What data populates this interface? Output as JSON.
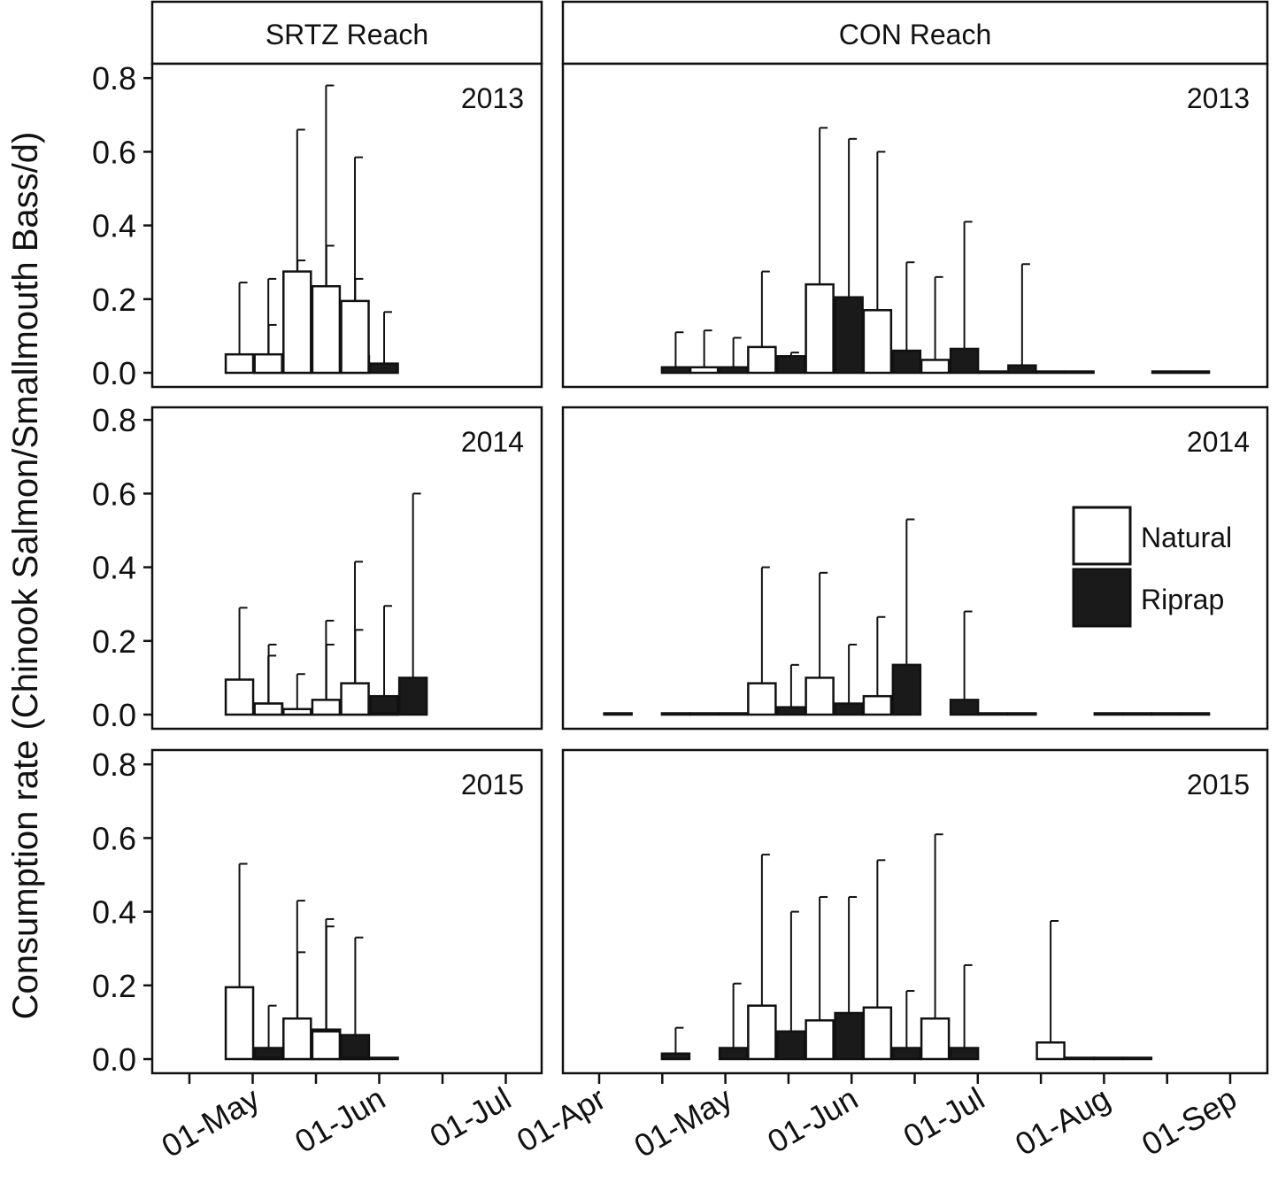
{
  "chart_data": {
    "type": "bar",
    "ylabel": "Consumption rate (Chinook Salmon/Smallmouth Bass/d)",
    "ylim": [
      0,
      0.8
    ],
    "yticks": [
      "0.0",
      "0.2",
      "0.4",
      "0.6",
      "0.8"
    ],
    "legend": {
      "position": "right",
      "entries": [
        {
          "name": "Natural",
          "color": "#ffffff"
        },
        {
          "name": "Riprap",
          "color": "#1a1a1a"
        }
      ]
    },
    "colors": {
      "natural": "#ffffff",
      "riprap": "#1a1a1a",
      "outline": "#111111"
    },
    "columns": [
      {
        "strip": "SRTZ Reach",
        "xticks": [
          "01-May",
          "01-Jun",
          "01-Jul"
        ],
        "panels": [
          {
            "label": "2013",
            "bars": [
              {
                "date": "2013-04-16",
                "series": "Natural",
                "value": 0.05,
                "upper": 0.245
              },
              {
                "date": "2013-04-16",
                "series": "Riprap",
                "value": 0.02,
                "upper": 0.13
              },
              {
                "date": "2013-04-30",
                "series": "Natural",
                "value": 0.05,
                "upper": 0.255
              },
              {
                "date": "2013-04-30",
                "series": "Riprap",
                "value": 0.055,
                "upper": 0.305
              },
              {
                "date": "2013-05-14",
                "series": "Natural",
                "value": 0.275,
                "upper": 0.66
              },
              {
                "date": "2013-05-14",
                "series": "Riprap",
                "value": 0.1,
                "upper": 0.345
              },
              {
                "date": "2013-05-28",
                "series": "Natural",
                "value": 0.235,
                "upper": 0.78
              },
              {
                "date": "2013-05-28",
                "series": "Riprap",
                "value": 0.045,
                "upper": 0.255
              },
              {
                "date": "2013-06-11",
                "series": "Natural",
                "value": 0.195,
                "upper": 0.585
              },
              {
                "date": "2013-06-11",
                "series": "Riprap",
                "value": 0.025,
                "upper": 0.165
              }
            ]
          },
          {
            "label": "2014",
            "bars": [
              {
                "date": "2014-04-16",
                "series": "Natural",
                "value": 0.095,
                "upper": 0.29
              },
              {
                "date": "2014-04-16",
                "series": "Riprap",
                "value": 0.03,
                "upper": 0.19
              },
              {
                "date": "2014-04-30",
                "series": "Natural",
                "value": 0.03,
                "upper": 0.16
              },
              {
                "date": "2014-04-30",
                "series": "Riprap",
                "value": 0.0,
                "upper": null
              },
              {
                "date": "2014-05-14",
                "series": "Natural",
                "value": 0.015,
                "upper": 0.11
              },
              {
                "date": "2014-05-14",
                "series": "Riprap",
                "value": 0.035,
                "upper": 0.19
              },
              {
                "date": "2014-05-28",
                "series": "Natural",
                "value": 0.04,
                "upper": 0.255
              },
              {
                "date": "2014-05-28",
                "series": "Riprap",
                "value": 0.035,
                "upper": 0.23
              },
              {
                "date": "2014-06-11",
                "series": "Natural",
                "value": 0.085,
                "upper": 0.415
              },
              {
                "date": "2014-06-11",
                "series": "Riprap",
                "value": 0.05,
                "upper": 0.295
              },
              {
                "date": "2014-06-25",
                "series": "Natural",
                "value": 0.0,
                "upper": null
              },
              {
                "date": "2014-06-25",
                "series": "Riprap",
                "value": 0.1,
                "upper": 0.6
              }
            ]
          },
          {
            "label": "2015",
            "bars": [
              {
                "date": "2015-04-16",
                "series": "Natural",
                "value": 0.195,
                "upper": 0.53
              },
              {
                "date": "2015-04-16",
                "series": "Riprap",
                "value": 0.03,
                "upper": 0.145
              },
              {
                "date": "2015-04-30",
                "series": "Natural",
                "value": 0.0,
                "upper": null
              },
              {
                "date": "2015-04-30",
                "series": "Riprap",
                "value": 0.045,
                "upper": 0.29
              },
              {
                "date": "2015-05-14",
                "series": "Natural",
                "value": 0.11,
                "upper": 0.43
              },
              {
                "date": "2015-05-14",
                "series": "Riprap",
                "value": 0.08,
                "upper": 0.36
              },
              {
                "date": "2015-05-28",
                "series": "Natural",
                "value": 0.075,
                "upper": 0.38
              },
              {
                "date": "2015-05-28",
                "series": "Riprap",
                "value": 0.065,
                "upper": 0.33
              },
              {
                "date": "2015-06-11",
                "series": "Natural",
                "value": 0.0,
                "upper": null
              },
              {
                "date": "2015-06-11",
                "series": "Riprap",
                "value": 0.0,
                "upper": null
              }
            ]
          }
        ]
      },
      {
        "strip": "CON Reach",
        "xticks": [
          "01-Apr",
          "01-May",
          "01-Jun",
          "01-Jul",
          "01-Aug",
          "01-Sep"
        ],
        "panels": [
          {
            "label": "2013",
            "bars": [
              {
                "date": "2013-04-16",
                "series": "Riprap",
                "value": 0.015,
                "upper": 0.11
              },
              {
                "date": "2013-04-30",
                "series": "Natural",
                "value": 0.015,
                "upper": 0.115
              },
              {
                "date": "2013-04-30",
                "series": "Riprap",
                "value": 0.015,
                "upper": 0.095
              },
              {
                "date": "2013-05-14",
                "series": "Natural",
                "value": 0.07,
                "upper": 0.275
              },
              {
                "date": "2013-05-14",
                "series": "Riprap",
                "value": 0.045,
                "upper": 0.055
              },
              {
                "date": "2013-05-28",
                "series": "Natural",
                "value": 0.24,
                "upper": 0.665
              },
              {
                "date": "2013-05-28",
                "series": "Riprap",
                "value": 0.205,
                "upper": 0.635
              },
              {
                "date": "2013-06-11",
                "series": "Natural",
                "value": 0.17,
                "upper": 0.6
              },
              {
                "date": "2013-06-11",
                "series": "Riprap",
                "value": 0.06,
                "upper": 0.3
              },
              {
                "date": "2013-06-25",
                "series": "Natural",
                "value": 0.035,
                "upper": 0.26
              },
              {
                "date": "2013-06-25",
                "series": "Riprap",
                "value": 0.065,
                "upper": 0.41
              },
              {
                "date": "2013-07-09",
                "series": "Natural",
                "value": 0.0,
                "upper": null
              },
              {
                "date": "2013-07-09",
                "series": "Riprap",
                "value": 0.02,
                "upper": 0.295
              },
              {
                "date": "2013-07-23",
                "series": "Natural",
                "value": 0.0,
                "upper": null
              },
              {
                "date": "2013-07-23",
                "series": "Riprap",
                "value": 0.0,
                "upper": null
              },
              {
                "date": "2013-08-20",
                "series": "Natural",
                "value": 0.0,
                "upper": null
              },
              {
                "date": "2013-08-20",
                "series": "Riprap",
                "value": 0.0,
                "upper": null
              }
            ]
          },
          {
            "label": "2014",
            "bars": [
              {
                "date": "2014-04-02",
                "series": "Riprap",
                "value": 0.0,
                "upper": null
              },
              {
                "date": "2014-04-16",
                "series": "Riprap",
                "value": 0.0,
                "upper": null
              },
              {
                "date": "2014-04-30",
                "series": "Natural",
                "value": 0.0,
                "upper": null
              },
              {
                "date": "2014-04-30",
                "series": "Riprap",
                "value": 0.0,
                "upper": null
              },
              {
                "date": "2014-05-14",
                "series": "Natural",
                "value": 0.085,
                "upper": 0.4
              },
              {
                "date": "2014-05-14",
                "series": "Riprap",
                "value": 0.02,
                "upper": 0.135
              },
              {
                "date": "2014-05-28",
                "series": "Natural",
                "value": 0.1,
                "upper": 0.385
              },
              {
                "date": "2014-05-28",
                "series": "Riprap",
                "value": 0.03,
                "upper": 0.19
              },
              {
                "date": "2014-06-11",
                "series": "Natural",
                "value": 0.05,
                "upper": 0.265
              },
              {
                "date": "2014-06-11",
                "series": "Riprap",
                "value": 0.135,
                "upper": 0.53
              },
              {
                "date": "2014-06-25",
                "series": "Riprap",
                "value": 0.04,
                "upper": 0.28
              },
              {
                "date": "2014-07-09",
                "series": "Natural",
                "value": 0.0,
                "upper": null
              },
              {
                "date": "2014-07-09",
                "series": "Riprap",
                "value": 0.0,
                "upper": null
              },
              {
                "date": "2014-08-06",
                "series": "Natural",
                "value": 0.0,
                "upper": null
              },
              {
                "date": "2014-08-06",
                "series": "Riprap",
                "value": 0.0,
                "upper": null
              },
              {
                "date": "2014-08-20",
                "series": "Natural",
                "value": 0.0,
                "upper": null
              },
              {
                "date": "2014-08-20",
                "series": "Riprap",
                "value": 0.0,
                "upper": null
              }
            ]
          },
          {
            "label": "2015",
            "bars": [
              {
                "date": "2015-04-16",
                "series": "Riprap",
                "value": 0.015,
                "upper": 0.085
              },
              {
                "date": "2015-04-30",
                "series": "Riprap",
                "value": 0.03,
                "upper": 0.205
              },
              {
                "date": "2015-05-14",
                "series": "Natural",
                "value": 0.145,
                "upper": 0.555
              },
              {
                "date": "2015-05-14",
                "series": "Riprap",
                "value": 0.075,
                "upper": 0.4
              },
              {
                "date": "2015-05-28",
                "series": "Natural",
                "value": 0.105,
                "upper": 0.44
              },
              {
                "date": "2015-05-28",
                "series": "Riprap",
                "value": 0.125,
                "upper": 0.44
              },
              {
                "date": "2015-06-11",
                "series": "Natural",
                "value": 0.14,
                "upper": 0.54
              },
              {
                "date": "2015-06-11",
                "series": "Riprap",
                "value": 0.03,
                "upper": 0.185
              },
              {
                "date": "2015-06-25",
                "series": "Natural",
                "value": 0.11,
                "upper": 0.61
              },
              {
                "date": "2015-06-25",
                "series": "Riprap",
                "value": 0.03,
                "upper": 0.255
              },
              {
                "date": "2015-07-23",
                "series": "Natural",
                "value": 0.045,
                "upper": 0.375
              },
              {
                "date": "2015-07-23",
                "series": "Riprap",
                "value": 0.0,
                "upper": null
              },
              {
                "date": "2015-08-06",
                "series": "Natural",
                "value": 0.0,
                "upper": null
              },
              {
                "date": "2015-08-06",
                "series": "Riprap",
                "value": 0.0,
                "upper": null
              }
            ]
          }
        ]
      }
    ]
  }
}
